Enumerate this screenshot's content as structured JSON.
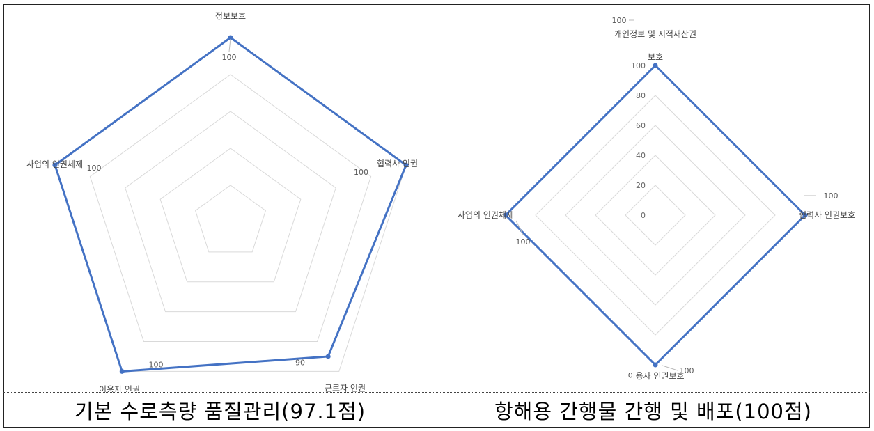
{
  "colors": {
    "series": "#4472C4",
    "grid": "#d9d9d9",
    "frame": "#222222"
  },
  "chart_data": [
    {
      "type": "radar",
      "categories": [
        "정보보호",
        "협력사 인권",
        "근로자 인권",
        "이용자 인권",
        "사업의 인권체제"
      ],
      "values": [
        100,
        100,
        90,
        100,
        100
      ],
      "value_labels": [
        "100",
        "100",
        "90",
        "100",
        "100"
      ],
      "rlim": [
        0,
        100
      ],
      "grid": true,
      "caption": "기본 수로측량 품질관리(97.1점)"
    },
    {
      "type": "radar",
      "categories": [
        "개인정보 및 지적재산권 보호",
        "협력사 인권보호",
        "이용자 인권보호",
        "사업의 인권체제"
      ],
      "category_lines": [
        [
          "개인정보 및 지적재산권",
          "보호"
        ],
        [
          "협력사 인권보호"
        ],
        [
          "이용자 인권보호"
        ],
        [
          "사업의 인권체제"
        ]
      ],
      "values": [
        100,
        100,
        100,
        100
      ],
      "value_labels": [
        "100",
        "100",
        "100",
        "100"
      ],
      "rlim": [
        0,
        100
      ],
      "r_ticks": [
        "0",
        "20",
        "40",
        "60",
        "80",
        "100"
      ],
      "grid": true,
      "caption": "항해용 간행물 간행 및 배포(100점)"
    }
  ]
}
